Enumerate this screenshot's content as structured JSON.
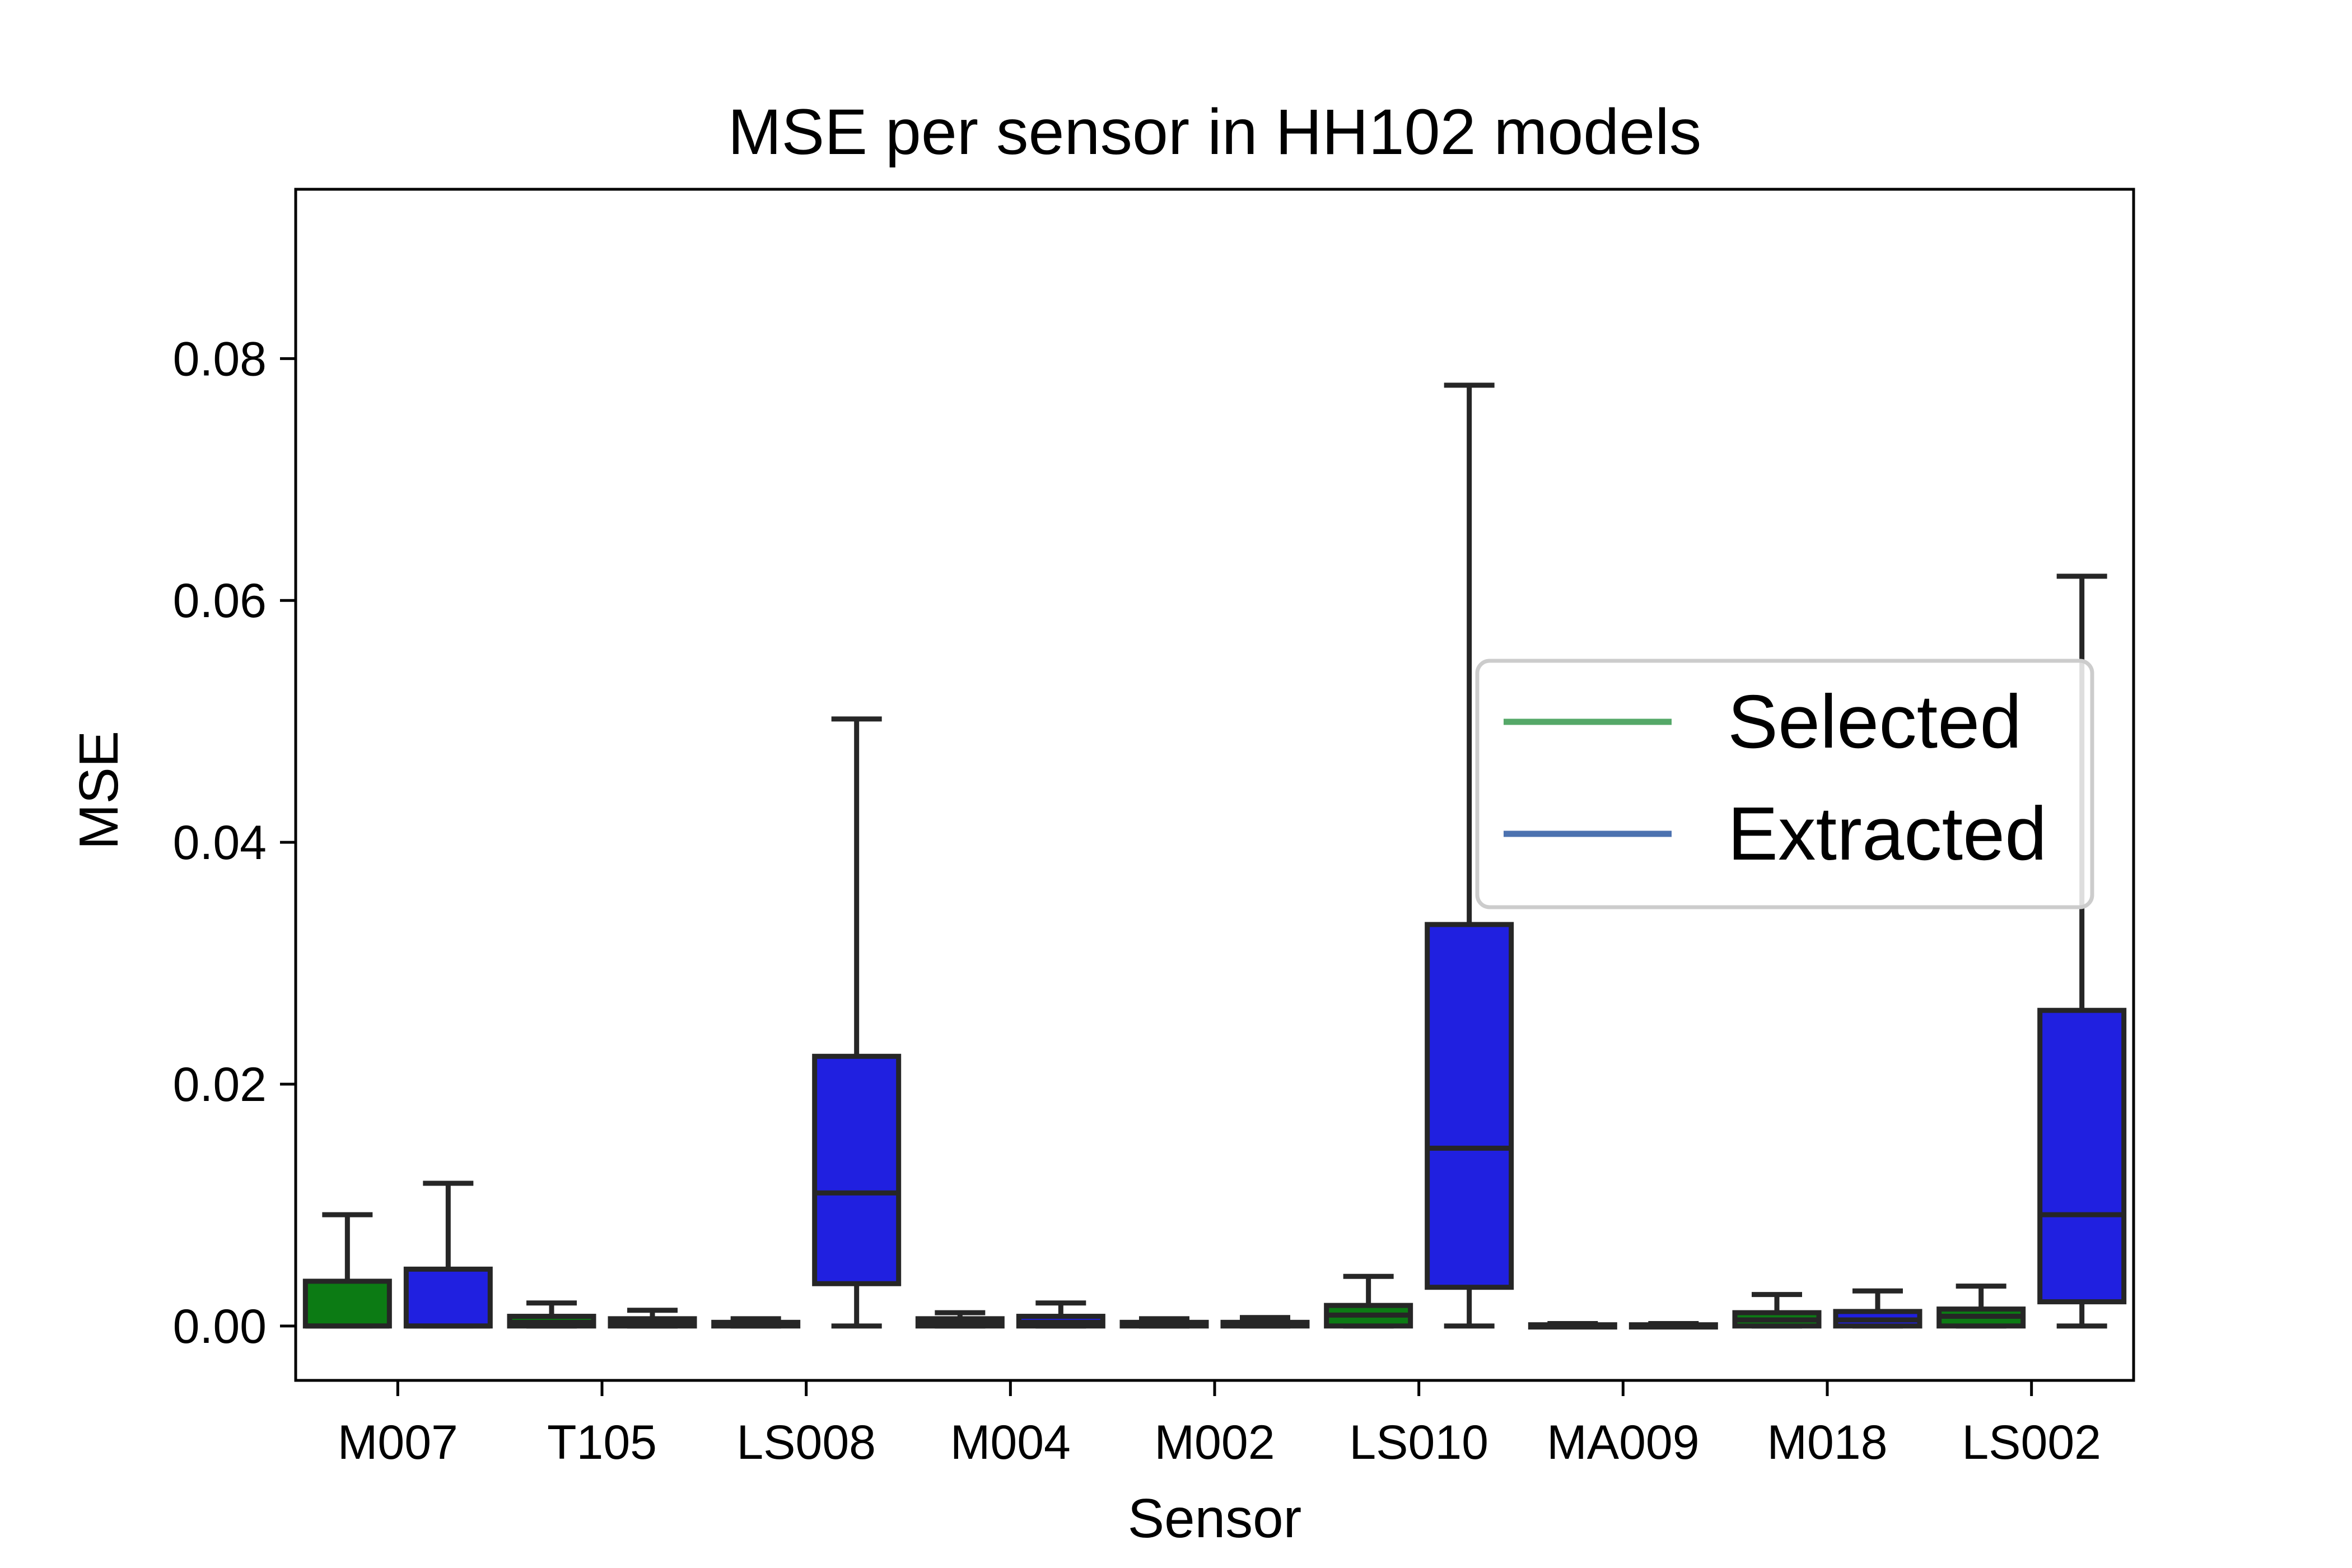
{
  "chart_data": {
    "type": "boxplot",
    "title": "MSE per sensor in HH102 models",
    "xlabel": "Sensor",
    "ylabel": "MSE",
    "ylim": [
      -0.0045,
      0.094
    ],
    "yticks": [
      0.0,
      0.02,
      0.04,
      0.06,
      0.08
    ],
    "ytick_labels": [
      "0.00",
      "0.02",
      "0.04",
      "0.06",
      "0.08"
    ],
    "categories": [
      "M007",
      "T105",
      "LS008",
      "M004",
      "M002",
      "LS010",
      "MA009",
      "M018",
      "LS002"
    ],
    "legend": {
      "position": "center-right",
      "entries": [
        {
          "name": "Selected",
          "color": "#55a868"
        },
        {
          "name": "Extracted",
          "color": "#4c72b0"
        }
      ]
    },
    "grid": false,
    "series": [
      {
        "name": "Selected",
        "fill": "#0c7b14",
        "boxes": [
          {
            "whisker_low": 0.0,
            "q1": 0.0,
            "median": 0.0,
            "q3": 0.0037,
            "whisker_high": 0.0092
          },
          {
            "whisker_low": 0.0,
            "q1": 0.0,
            "median": 0.0003,
            "q3": 0.0008,
            "whisker_high": 0.0019
          },
          {
            "whisker_low": 0.0,
            "q1": 0.0,
            "median": 0.0001,
            "q3": 0.0003,
            "whisker_high": 0.0006
          },
          {
            "whisker_low": 0.0,
            "q1": 0.0,
            "median": 0.0002,
            "q3": 0.0006,
            "whisker_high": 0.0011
          },
          {
            "whisker_low": 0.0,
            "q1": 0.0,
            "median": 0.0001,
            "q3": 0.0003,
            "whisker_high": 0.0006
          },
          {
            "whisker_low": 0.0,
            "q1": 0.0,
            "median": 0.0009,
            "q3": 0.0017,
            "whisker_high": 0.0041
          },
          {
            "whisker_low": 0.0,
            "q1": 0.0,
            "median": 0.0,
            "q3": 0.0001,
            "whisker_high": 0.0002
          },
          {
            "whisker_low": 0.0,
            "q1": 0.0,
            "median": 0.0005,
            "q3": 0.0011,
            "whisker_high": 0.0026
          },
          {
            "whisker_low": 0.0,
            "q1": 0.0,
            "median": 0.0008,
            "q3": 0.0014,
            "whisker_high": 0.0033
          }
        ]
      },
      {
        "name": "Extracted",
        "fill": "#2020e0",
        "boxes": [
          {
            "whisker_low": 0.0,
            "q1": 0.0,
            "median": 0.0,
            "q3": 0.0047,
            "whisker_high": 0.0118
          },
          {
            "whisker_low": 0.0,
            "q1": 0.0,
            "median": 0.0002,
            "q3": 0.0006,
            "whisker_high": 0.0013
          },
          {
            "whisker_low": 0.0,
            "q1": 0.0035,
            "median": 0.011,
            "q3": 0.0223,
            "whisker_high": 0.0502
          },
          {
            "whisker_low": 0.0,
            "q1": 0.0,
            "median": 0.0003,
            "q3": 0.0008,
            "whisker_high": 0.0019
          },
          {
            "whisker_low": 0.0,
            "q1": 0.0,
            "median": 0.0001,
            "q3": 0.0003,
            "whisker_high": 0.0007
          },
          {
            "whisker_low": 0.0,
            "q1": 0.0032,
            "median": 0.0147,
            "q3": 0.0332,
            "whisker_high": 0.0778
          },
          {
            "whisker_low": 0.0,
            "q1": 0.0,
            "median": 0.0,
            "q3": 0.0001,
            "whisker_high": 0.0002
          },
          {
            "whisker_low": 0.0,
            "q1": 0.0,
            "median": 0.0005,
            "q3": 0.0012,
            "whisker_high": 0.0029
          },
          {
            "whisker_low": 0.0,
            "q1": 0.002,
            "median": 0.0092,
            "q3": 0.0261,
            "whisker_high": 0.062
          }
        ]
      }
    ]
  }
}
